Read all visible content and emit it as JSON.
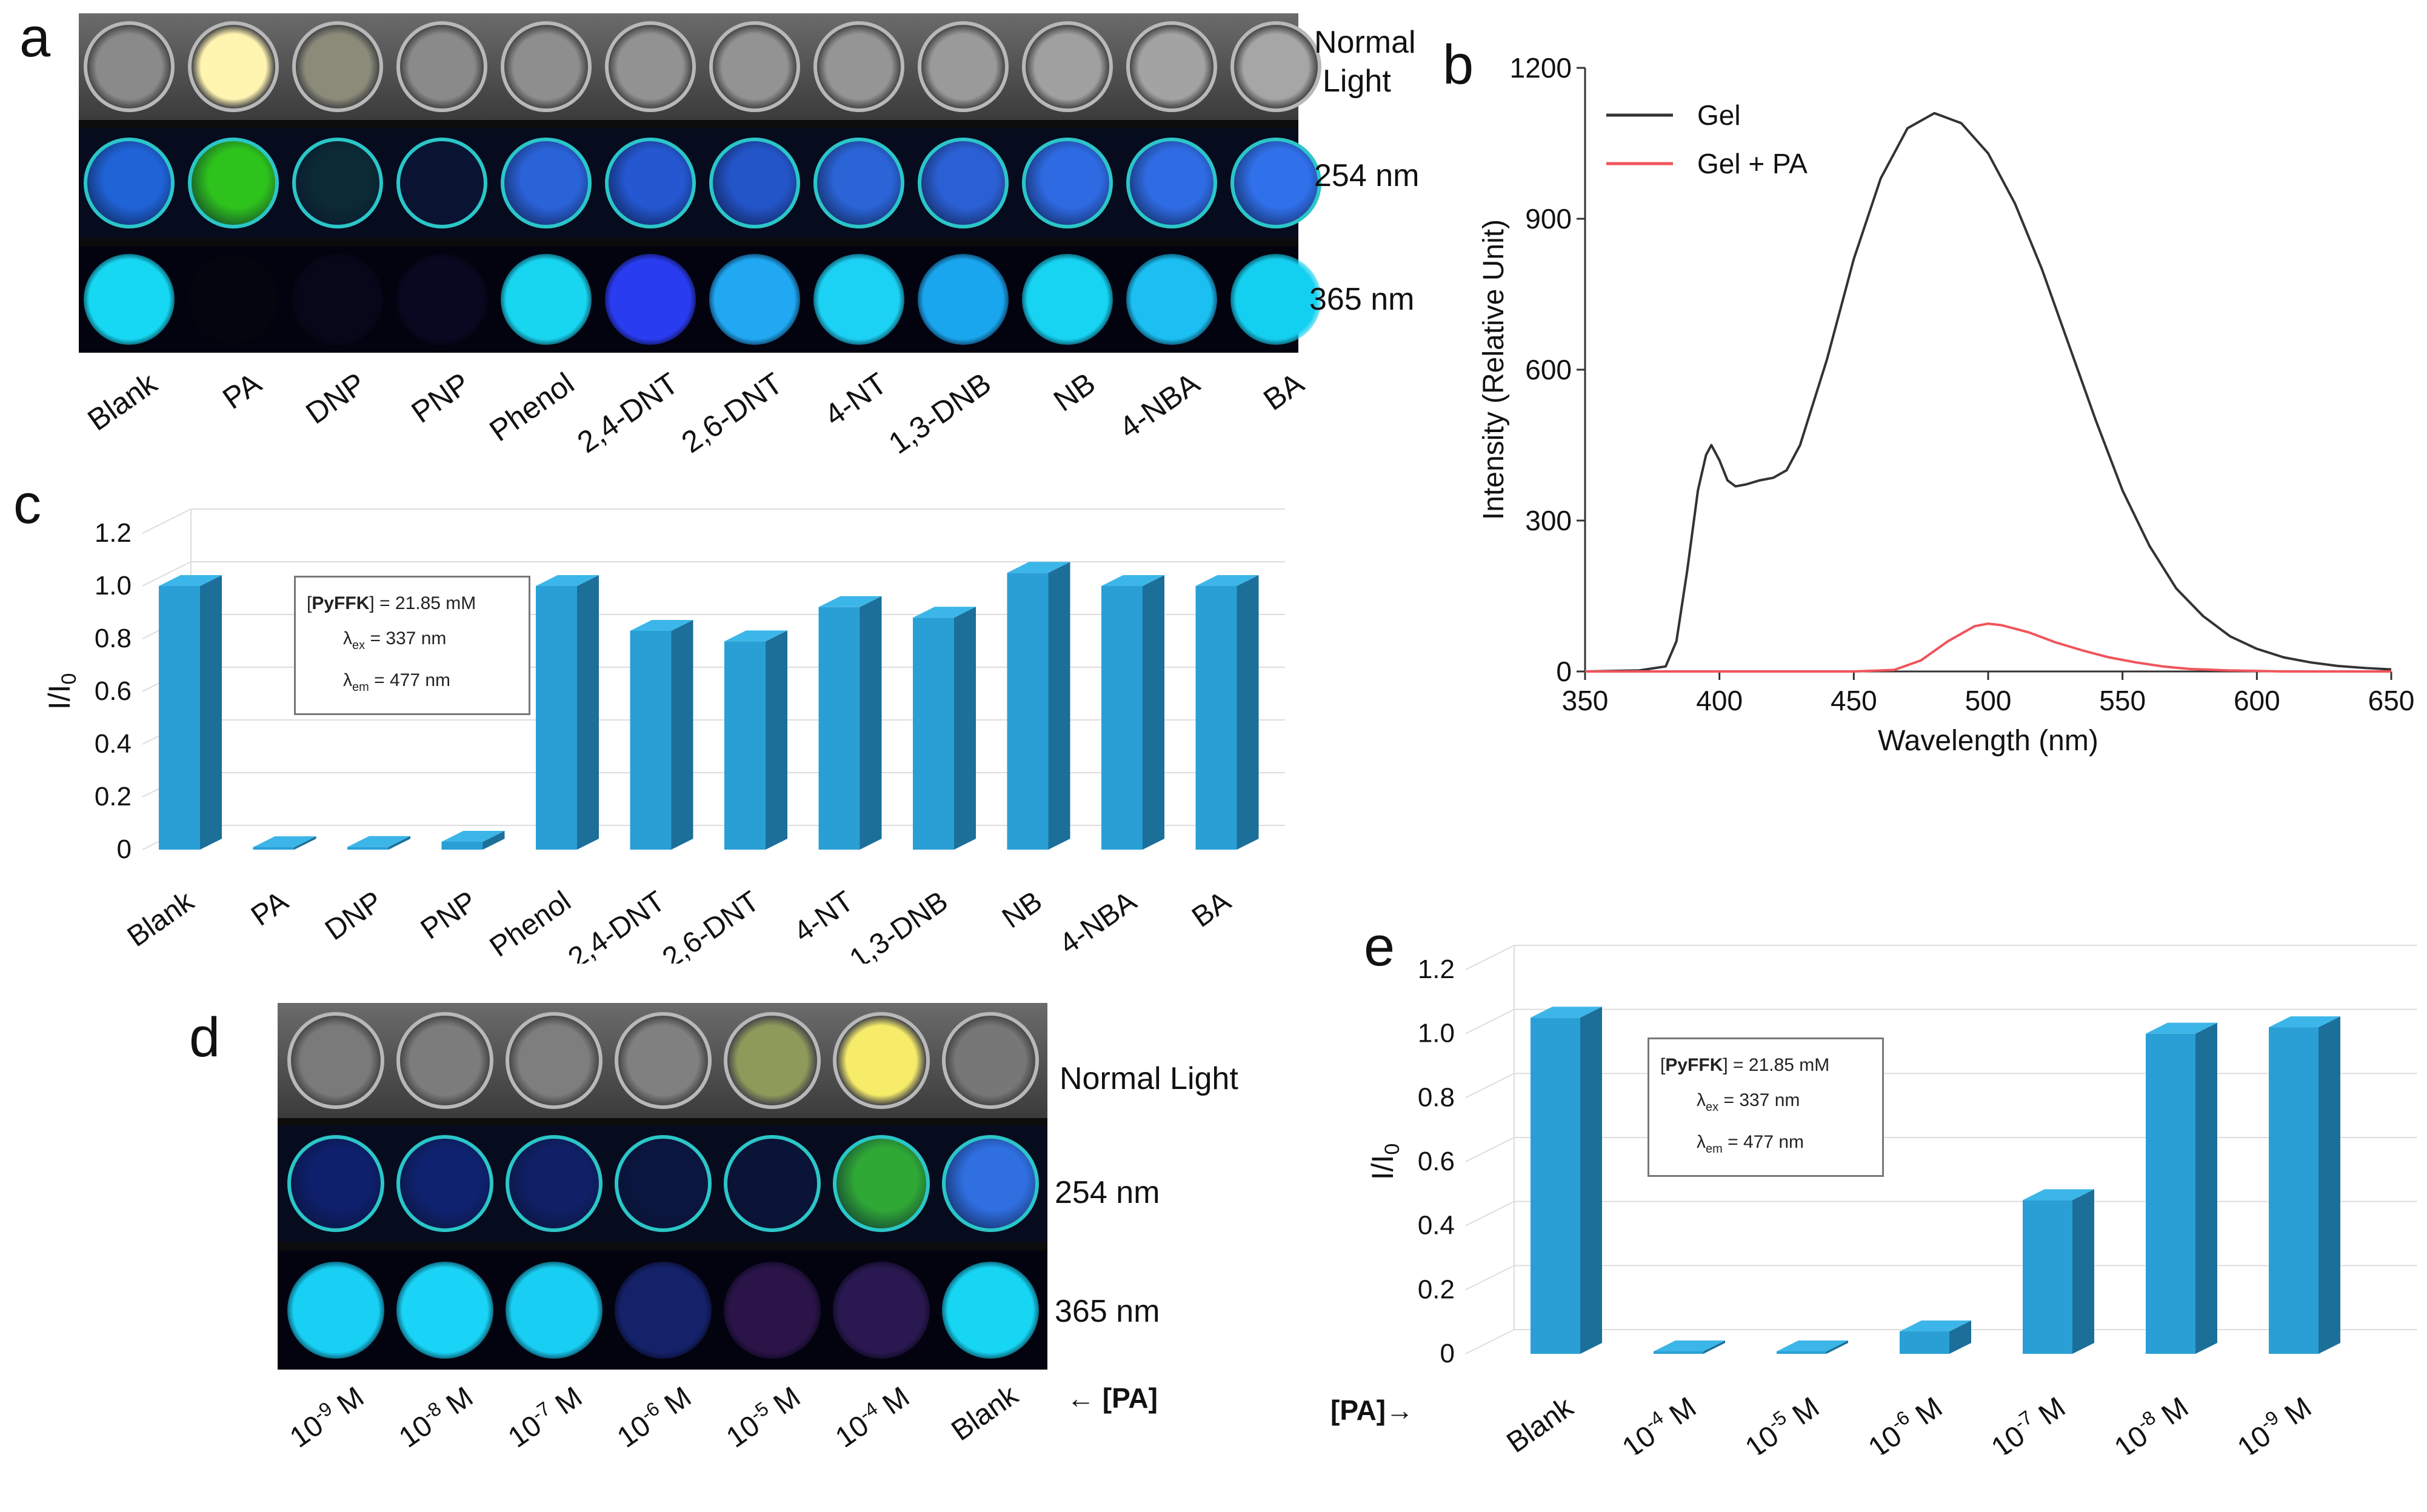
{
  "panels": {
    "a": {
      "letter": "a",
      "samples": [
        "Blank",
        "PA",
        "DNP",
        "PNP",
        "Phenol",
        "2,4-DNT",
        "2,6-DNT",
        "4-NT",
        "1,3-DNB",
        "NB",
        "4-NBA",
        "BA"
      ],
      "row_labels": {
        "normal_line1": "Normal",
        "normal_line2": "Light",
        "uv254": "254 nm",
        "uv365": "365 nm"
      },
      "normal_colors": [
        "#8a8a8a",
        "#fff4b0",
        "#8b8b7a",
        "#8a8a8a",
        "#8e8e8e",
        "#929292",
        "#939393",
        "#959595",
        "#9a9a9a",
        "#a0a0a0",
        "#a3a3a3",
        "#a6a6a6"
      ],
      "uv254_colors": [
        "#1f63d6",
        "#2ec21c",
        "#0b2a33",
        "#0a1433",
        "#2a62d8",
        "#2457d0",
        "#2354c8",
        "#2a64d6",
        "#2b60d4",
        "#2e6ae2",
        "#2f6ce4",
        "#3070ea"
      ],
      "uv365_colors": [
        "#16d8f2",
        "#05050d",
        "#07071a",
        "#080820",
        "#18d6f0",
        "#2a3cf0",
        "#20a8f2",
        "#1cd2f4",
        "#1aa6ee",
        "#16d4f2",
        "#1bbff2",
        "#14d0f0"
      ]
    },
    "b": {
      "letter": "b",
      "legend": [
        {
          "name": "Gel",
          "color": "#333333"
        },
        {
          "name": "Gel + PA",
          "color": "#f0545c"
        }
      ]
    },
    "c": {
      "letter": "c",
      "info": {
        "reagent": "PyFFK",
        "conc": " = 21.85 mM",
        "ex_sym": "λ",
        "ex_sub": "ex",
        "ex_val": " = 337 nm",
        "em_sym": "λ",
        "em_sub": "em",
        "em_val": " = 477 nm"
      }
    },
    "d": {
      "letter": "d",
      "samples": [
        "10-9 M",
        "10-8 M",
        "10-7 M",
        "10-6 M",
        "10-5 M",
        "10-4 M",
        "Blank"
      ],
      "sample_base": [
        "10",
        "10",
        "10",
        "10",
        "10",
        "10",
        "Blank"
      ],
      "sample_exp": [
        "-9",
        "-8",
        "-7",
        "-6",
        "-5",
        "-4",
        ""
      ],
      "sample_unit": [
        " M",
        " M",
        " M",
        " M",
        " M",
        " M",
        ""
      ],
      "row_labels": {
        "normal": "Normal Light",
        "uv254": "254 nm",
        "uv365": "365 nm"
      },
      "pa_label": "← [PA]",
      "normal_colors": [
        "#7a7a7a",
        "#7c7c7c",
        "#7e7e7e",
        "#808080",
        "#8e9a5a",
        "#f6ec6a",
        "#777777"
      ],
      "uv254_colors": [
        "#0e1f6b",
        "#0f2270",
        "#0f2066",
        "#0b1640",
        "#0a1438",
        "#2fa836",
        "#2f6fe0"
      ],
      "uv365_colors": [
        "#17d0f4",
        "#19d4f6",
        "#18cef2",
        "#15226a",
        "#2a1448",
        "#2a1850",
        "#16d6f4"
      ]
    },
    "e": {
      "letter": "e",
      "pa_label": "[PA]→",
      "info": {
        "reagent": "PyFFK",
        "conc": " = 21.85 mM",
        "ex_sym": "λ",
        "ex_sub": "ex",
        "ex_val": " = 337 nm",
        "em_sym": "λ",
        "em_sub": "em",
        "em_val": " = 477 nm"
      }
    }
  },
  "chart_data": [
    {
      "id": "b",
      "type": "line",
      "title": "",
      "xlabel": "Wavelength (nm)",
      "ylabel": "Intensity (Relative Unit)",
      "xlim": [
        350,
        650
      ],
      "ylim": [
        0,
        1200
      ],
      "xticks": [
        350,
        400,
        450,
        500,
        550,
        600,
        650
      ],
      "yticks": [
        0,
        300,
        600,
        900,
        1200
      ],
      "series": [
        {
          "name": "Gel",
          "color": "#333333",
          "x": [
            350,
            370,
            380,
            384,
            388,
            392,
            395,
            397,
            400,
            403,
            406,
            410,
            415,
            420,
            425,
            430,
            440,
            450,
            460,
            470,
            480,
            490,
            500,
            510,
            520,
            530,
            540,
            550,
            560,
            570,
            580,
            590,
            600,
            610,
            620,
            630,
            640,
            650
          ],
          "y": [
            0,
            2,
            10,
            60,
            200,
            360,
            430,
            450,
            420,
            380,
            368,
            372,
            380,
            385,
            400,
            450,
            620,
            820,
            980,
            1080,
            1110,
            1090,
            1030,
            930,
            800,
            650,
            500,
            360,
            250,
            165,
            110,
            70,
            45,
            28,
            18,
            11,
            7,
            4
          ]
        },
        {
          "name": "Gel + PA",
          "color": "#f0545c",
          "x": [
            350,
            400,
            450,
            465,
            475,
            485,
            495,
            500,
            505,
            515,
            525,
            535,
            545,
            555,
            565,
            575,
            590,
            610,
            650
          ],
          "y": [
            0,
            0,
            0,
            3,
            22,
            60,
            90,
            95,
            92,
            78,
            58,
            42,
            28,
            18,
            10,
            5,
            2,
            0,
            0
          ]
        }
      ]
    },
    {
      "id": "c",
      "type": "bar",
      "categories": [
        "Blank",
        "PA",
        "DNP",
        "PNP",
        "Phenol",
        "2,4-DNT",
        "2,6-DNT",
        "4-NT",
        "1,3-DNB",
        "NB",
        "4-NBA",
        "BA"
      ],
      "values": [
        1.0,
        0.005,
        0.01,
        0.03,
        1.0,
        0.83,
        0.79,
        0.92,
        0.88,
        1.05,
        1.0,
        1.0
      ],
      "ylabel": "I/I0",
      "ylabel_main": "I/I",
      "ylabel_sub": "0",
      "ylim": [
        0,
        1.2
      ],
      "yticks": [
        "0",
        "0.2",
        "0.4",
        "0.6",
        "0.8",
        "1.0",
        "1.2"
      ],
      "bar_color": "#2a9fd6"
    },
    {
      "id": "e",
      "type": "bar",
      "categories": [
        "Blank",
        "10-4 M",
        "10-5 M",
        "10-6 M",
        "10-7 M",
        "10-8 M",
        "10-9 M"
      ],
      "cat_base": [
        "Blank",
        "10",
        "10",
        "10",
        "10",
        "10",
        "10"
      ],
      "cat_exp": [
        "",
        "-4",
        "-5",
        "-6",
        "-7",
        "-8",
        "-9"
      ],
      "cat_unit": [
        "",
        " M",
        " M",
        " M",
        " M",
        " M",
        " M"
      ],
      "values": [
        1.05,
        0.005,
        0.005,
        0.07,
        0.48,
        1.0,
        1.02
      ],
      "ylabel": "I/I0",
      "ylabel_main": "I/I",
      "ylabel_sub": "0",
      "ylim": [
        0,
        1.2
      ],
      "yticks": [
        "0",
        "0.2",
        "0.4",
        "0.6",
        "0.8",
        "1.0",
        "1.2"
      ],
      "bar_color": "#2a9fd6"
    }
  ]
}
